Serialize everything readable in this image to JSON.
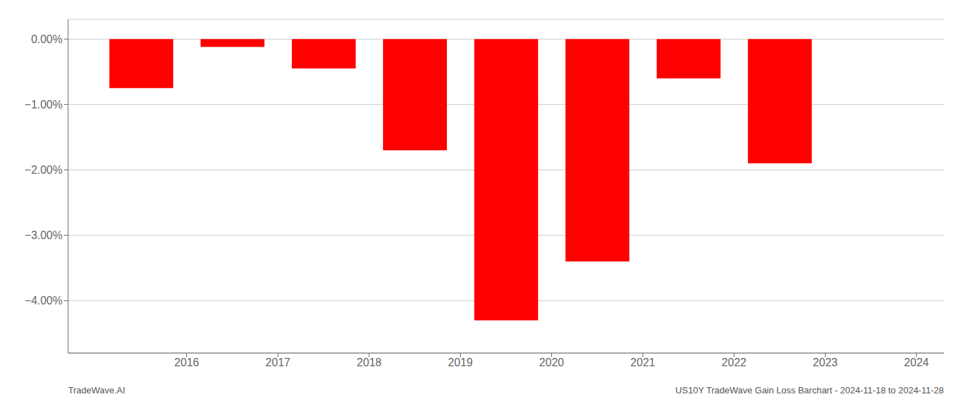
{
  "chart_data": {
    "type": "bar",
    "x": [
      2015.5,
      2016.5,
      2017.5,
      2018.5,
      2019.5,
      2020.5,
      2021.5,
      2022.5,
      2023.5
    ],
    "values": [
      -0.0075,
      -0.0012,
      -0.0045,
      -0.017,
      -0.043,
      -0.034,
      -0.006,
      -0.019,
      0.0
    ],
    "color": "#ff0000",
    "xlim": [
      2014.7,
      2024.3
    ],
    "xticks": [
      2016,
      2017,
      2018,
      2019,
      2020,
      2021,
      2022,
      2023,
      2024
    ],
    "ylim": [
      -0.048,
      0.003
    ],
    "yticks": [
      {
        "value": 0.0,
        "label": "0.00%"
      },
      {
        "value": -0.01,
        "label": "−1.00%"
      },
      {
        "value": -0.02,
        "label": "−2.00%"
      },
      {
        "value": -0.03,
        "label": "−3.00%"
      },
      {
        "value": -0.04,
        "label": "−4.00%"
      }
    ],
    "grid": true,
    "annotations": [
      "TradeWave.AI",
      "US10Y TradeWave Gain Loss Barchart - 2024-11-18 to 2024-11-28"
    ]
  }
}
